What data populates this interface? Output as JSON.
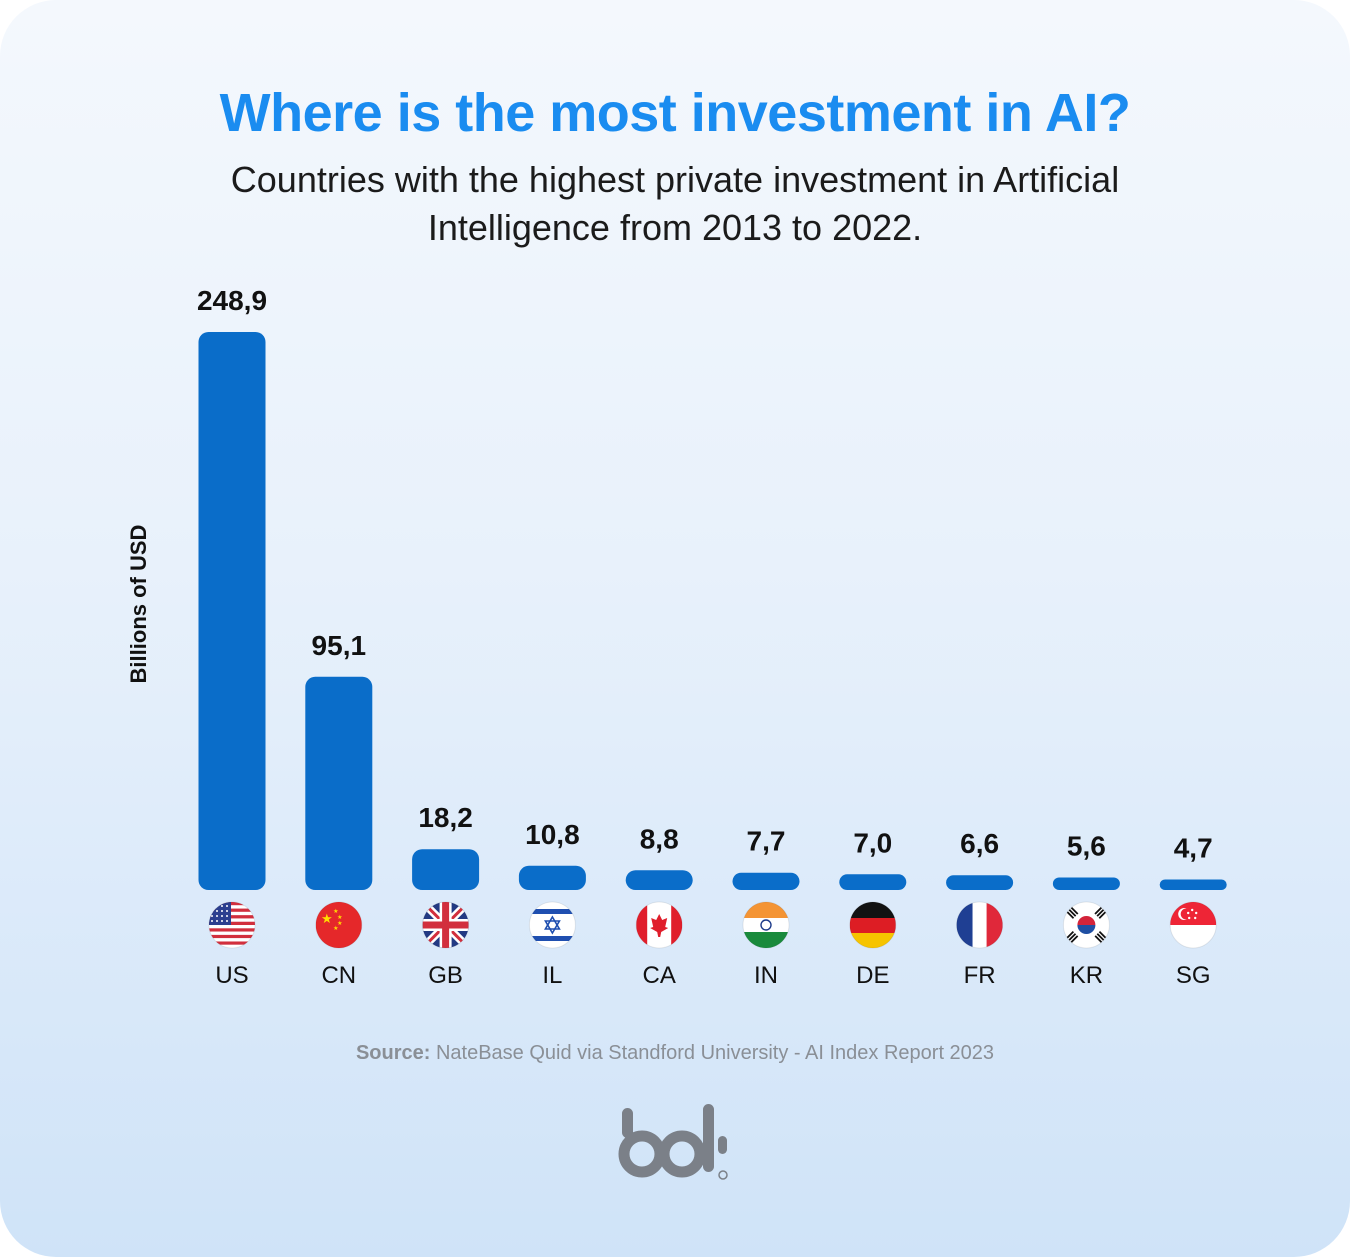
{
  "header": {
    "title": "Where is the most investment in AI?",
    "subtitle": "Countries with the highest private investment in Artificial Intelligence from 2013 to 2022."
  },
  "footer": {
    "source_label": "Source:",
    "source_text": "NateBase Quid via Standford University - AI Index Report 2023",
    "logo_text": "bit"
  },
  "colors": {
    "bar": "#0a6dc9",
    "title": "#1a8cf0"
  },
  "chart_data": {
    "type": "bar",
    "ylabel": "Billions of USD",
    "categories": [
      "US",
      "CN",
      "GB",
      "IL",
      "CA",
      "IN",
      "DE",
      "FR",
      "KR",
      "SG"
    ],
    "values": [
      248.9,
      95.1,
      18.2,
      10.8,
      8.8,
      7.7,
      7.0,
      6.6,
      5.6,
      4.7
    ],
    "value_labels": [
      "248,9",
      "95,1",
      "18,2",
      "10,8",
      "8,8",
      "7,7",
      "7,0",
      "6,6",
      "5,6",
      "4,7"
    ],
    "flags": [
      "us-flag-icon",
      "cn-flag-icon",
      "gb-flag-icon",
      "il-flag-icon",
      "ca-flag-icon",
      "in-flag-icon",
      "de-flag-icon",
      "fr-flag-icon",
      "kr-flag-icon",
      "sg-flag-icon"
    ],
    "ylim": [
      0,
      248.9
    ],
    "grid": false,
    "legend": "none"
  }
}
